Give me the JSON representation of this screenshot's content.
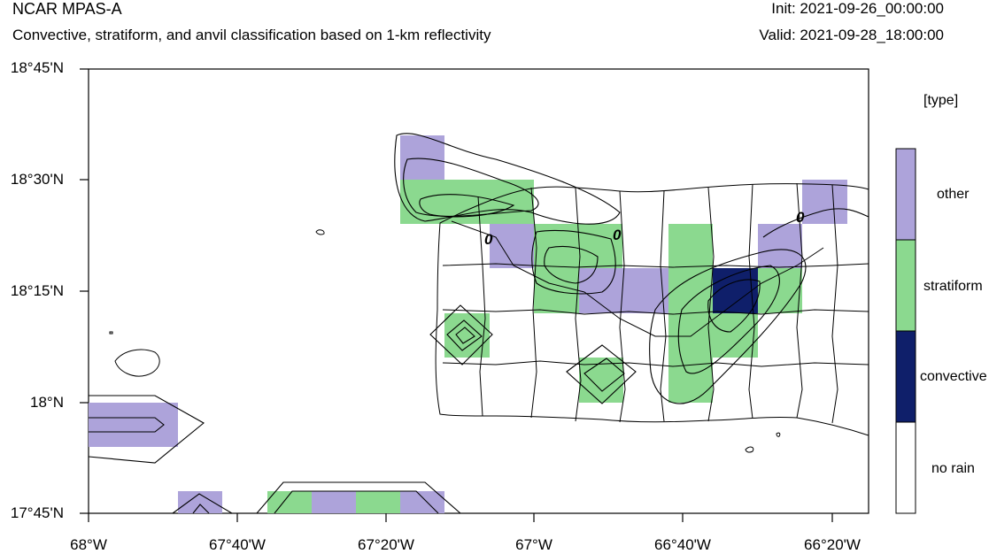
{
  "header": {
    "org": "NCAR MPAS-A",
    "subtitle": "Convective, stratiform, and anvil classification based on 1-km reflectivity",
    "init": "Init: 2021-09-26_00:00:00",
    "valid": "Valid: 2021-09-28_18:00:00"
  },
  "legend": {
    "units": "[type]",
    "items": [
      {
        "label": "other",
        "color": "#ada3da"
      },
      {
        "label": "stratiform",
        "color": "#8bd98f"
      },
      {
        "label": "convective",
        "color": "#0f1f6a"
      },
      {
        "label": "no rain",
        "color": "#ffffff"
      }
    ]
  },
  "axes": {
    "lat_labels": [
      "18°45'N",
      "18°30'N",
      "18°15'N",
      "18°N",
      "17°45'N"
    ],
    "lon_labels": [
      "68°W",
      "67°40'W",
      "67°20'W",
      "67°W",
      "66°40'W",
      "66°20'W"
    ]
  },
  "contour_labels": [
    "0",
    "0",
    "0"
  ]
}
